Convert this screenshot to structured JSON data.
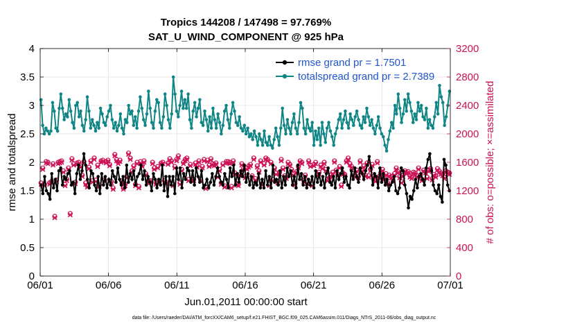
{
  "chart_data": {
    "type": "line",
    "title": "Tropics 144208 / 147498 = 97.769%",
    "subtitle": "SAT_U_WIND_COMPONENT @ 925 hPa",
    "xlabel": "Jun.01,2011 00:00:00 start",
    "ylabel": "rmse and totalspread",
    "ylabel_right": "# of obs: o=possible; ×=assimilated",
    "footnote": "data file: /Users/raeder/DAI/ATM_forcXX/CAM6_setup/f.e21.FHIST_BGC.f09_025.CAM6assim.011/Diags_NTrS_2011-06/obs_diag_output.nc",
    "x_tick_labels": [
      "06/01",
      "06/06",
      "06/11",
      "06/16",
      "06/21",
      "06/26",
      "07/01"
    ],
    "x_tick_days": [
      0,
      5,
      10,
      15,
      20,
      25,
      30
    ],
    "xlim": [
      0,
      30
    ],
    "ylim": [
      0,
      4
    ],
    "y_ticks": [
      0,
      0.5,
      1,
      1.5,
      2,
      2.5,
      3,
      3.5,
      4
    ],
    "y_tick_labels": [
      "0",
      "0.5",
      "1",
      "1.5",
      "2",
      "2.5",
      "3",
      "3.5",
      "4"
    ],
    "ylim_right": [
      0,
      3200
    ],
    "y_right_ticks": [
      0,
      400,
      800,
      1200,
      1600,
      2000,
      2400,
      2800,
      3200
    ],
    "y_right_tick_labels": [
      "0",
      "400",
      "800",
      "1200",
      "1600",
      "2000",
      "2400",
      "2800",
      "3200"
    ],
    "colors": {
      "rmse": "#000000",
      "totalspread": "#0f8585",
      "obs": "#cc1155"
    },
    "series": [
      {
        "name": "rmse grand pr = 1.7501",
        "axis": "left",
        "values": [
          1.6,
          1.45,
          1.75,
          1.5,
          1.45,
          1.35,
          1.8,
          1.55,
          1.7,
          1.5,
          1.85,
          1.9,
          1.6,
          1.75,
          1.7,
          1.8,
          1.85,
          1.6,
          1.65,
          1.45,
          1.8,
          1.95,
          1.7,
          1.85,
          2.15,
          1.95,
          1.7,
          1.55,
          1.85,
          1.8,
          1.6,
          1.5,
          1.75,
          1.45,
          1.8,
          1.6,
          1.75,
          1.55,
          1.7,
          1.6,
          1.85,
          1.75,
          1.65,
          1.9,
          1.7,
          1.6,
          1.75,
          1.55,
          1.95,
          1.65,
          1.8,
          1.7,
          1.85,
          1.6,
          1.75,
          1.8,
          1.95,
          1.7,
          1.85,
          1.6,
          1.75,
          1.65,
          1.5,
          1.8,
          1.7,
          1.55,
          1.7,
          1.6,
          1.95,
          1.5,
          1.75,
          1.4,
          1.75,
          1.6,
          1.75,
          1.45,
          1.9,
          1.7,
          1.9,
          1.55,
          1.8,
          1.7,
          1.9,
          1.85,
          1.65,
          1.85,
          1.6,
          1.9,
          1.75,
          1.65,
          1.85,
          1.55,
          1.6,
          1.7,
          1.55,
          1.65,
          1.8,
          1.6,
          1.75,
          1.9,
          1.75,
          1.65,
          1.6,
          1.8,
          1.7,
          1.55,
          1.9,
          1.75,
          1.95,
          1.6,
          1.8,
          1.65,
          1.85,
          1.75,
          1.95,
          1.65,
          1.8,
          1.6,
          1.75,
          1.55,
          1.65,
          1.6,
          1.8,
          1.55,
          1.7,
          1.55,
          1.85,
          1.6,
          1.75,
          1.55,
          1.95,
          1.65,
          1.7,
          1.6,
          1.85,
          1.55,
          1.75,
          1.6,
          1.9,
          1.75,
          1.85,
          1.6,
          1.75,
          1.55,
          1.95,
          1.7,
          1.8,
          1.6,
          1.75,
          1.55,
          1.7,
          1.6,
          1.75,
          1.55,
          1.85,
          1.65,
          1.8,
          1.6,
          1.75,
          1.55,
          1.8,
          1.9,
          1.65,
          1.6,
          1.75,
          1.55,
          1.85,
          1.7,
          1.8,
          1.9,
          1.65,
          1.75,
          1.6,
          1.55,
          1.85,
          1.7,
          1.9,
          1.75,
          1.65,
          1.9,
          1.8,
          1.7,
          1.85,
          1.95,
          2.1,
          1.9,
          1.6,
          1.8,
          1.75,
          1.55,
          1.9,
          1.65,
          1.8,
          1.6,
          1.7,
          1.5,
          1.6,
          1.65,
          1.75,
          1.5,
          1.45,
          1.55,
          1.9,
          1.85,
          1.6,
          1.45,
          1.2,
          1.4,
          1.35,
          1.5,
          1.7,
          1.55,
          1.75,
          1.8,
          1.7,
          1.6,
          1.9,
          2.05,
          2.15,
          1.85,
          1.6,
          1.5,
          1.45,
          1.6,
          1.4,
          1.3,
          2.05,
          1.95,
          1.6,
          1.5
        ]
      },
      {
        "name": "totalspread grand pr = 2.7389",
        "axis": "left",
        "values": [
          3.1,
          2.65,
          2.5,
          2.6,
          2.55,
          2.5,
          2.55,
          3.05,
          2.9,
          2.6,
          2.55,
          2.95,
          3.2,
          2.95,
          2.75,
          2.85,
          2.8,
          3.1,
          2.9,
          2.7,
          2.6,
          3.0,
          3.05,
          2.8,
          2.9,
          2.65,
          2.55,
          2.75,
          3.15,
          2.9,
          2.6,
          2.75,
          2.65,
          2.55,
          2.7,
          2.6,
          2.95,
          2.85,
          2.7,
          2.65,
          2.8,
          2.9,
          3.0,
          2.75,
          2.6,
          2.7,
          2.55,
          2.65,
          2.85,
          2.6,
          2.5,
          2.75,
          2.7,
          3.0,
          2.85,
          2.9,
          2.65,
          2.8,
          2.6,
          2.9,
          3.15,
          2.95,
          2.75,
          2.65,
          2.85,
          3.25,
          2.95,
          2.7,
          2.6,
          2.9,
          3.1,
          3.05,
          2.7,
          2.6,
          2.8,
          3.2,
          3.0,
          2.75,
          2.6,
          2.85,
          3.5,
          3.2,
          2.9,
          2.8,
          3.0,
          3.25,
          2.95,
          3.1,
          2.95,
          3.2,
          2.75,
          2.6,
          2.9,
          3.05,
          2.8,
          2.95,
          3.1,
          2.7,
          2.65,
          2.9,
          2.75,
          2.55,
          2.8,
          2.6,
          2.95,
          2.75,
          2.6,
          2.85,
          2.7,
          2.5,
          2.65,
          2.9,
          3.0,
          2.75,
          2.6,
          2.85,
          3.05,
          2.9,
          2.7,
          2.65,
          2.8,
          2.6,
          2.55,
          2.65,
          2.5,
          2.6,
          2.45,
          2.5,
          2.4,
          2.55,
          2.45,
          2.3,
          2.5,
          2.4,
          2.3,
          2.55,
          2.35,
          2.3,
          2.45,
          2.3,
          2.25,
          2.4,
          2.6,
          2.45,
          2.3,
          2.6,
          2.95,
          2.65,
          2.5,
          2.75,
          2.6,
          2.5,
          2.7,
          2.85,
          2.6,
          2.5,
          2.7,
          3.05,
          2.95,
          2.6,
          2.5,
          2.75,
          2.6,
          2.55,
          2.7,
          2.3,
          2.55,
          2.4,
          2.6,
          2.3,
          2.7,
          2.5,
          2.35,
          2.6,
          2.7,
          2.55,
          2.45,
          2.3,
          2.5,
          2.6,
          2.75,
          2.85,
          2.6,
          2.75,
          2.9,
          2.7,
          2.6,
          2.85,
          2.75,
          2.65,
          2.8,
          2.9,
          2.75,
          2.65,
          2.6,
          2.8,
          2.7,
          2.95,
          2.8,
          2.65,
          2.75,
          2.6,
          2.5,
          2.65,
          2.8,
          2.6,
          2.5,
          2.45,
          2.3,
          2.2,
          2.4,
          2.55,
          2.7,
          2.6,
          3.0,
          2.85,
          3.2,
          2.95,
          2.7,
          2.85,
          3.1,
          2.9,
          3.2,
          3.05,
          2.9,
          2.7,
          2.85,
          2.75,
          3.05,
          2.9,
          3.0,
          2.8,
          2.75,
          2.95,
          2.6,
          2.75,
          2.65,
          2.6,
          2.8,
          3.05,
          2.85,
          3.35,
          3.15,
          3.05,
          2.65,
          2.8,
          3.0,
          3.25
        ]
      },
      {
        "name": "obs possible",
        "axis": "right",
        "values": [
          1310,
          1520,
          1290,
          1610,
          1600,
          1310,
          1330,
          1580,
          840,
          1350,
          1600,
          1610,
          1620,
          1480,
          1290,
          1360,
          1520,
          880,
          1650,
          1580,
          1320,
          1590,
          1600,
          1550,
          1420,
          1610,
          1310,
          1270,
          1530,
          1620,
          1340,
          1660,
          1350,
          1560,
          1280,
          1620,
          1630,
          1350,
          1610,
          1630,
          1570,
          1330,
          1240,
          1710,
          1640,
          1600,
          1630,
          1340,
          1240,
          1290,
          1400,
          1730,
          1660,
          1480,
          1550,
          1290,
          1600,
          1260,
          1610,
          1560,
          1620,
          1440,
          1330,
          1340,
          1340,
          1600,
          1520,
          1310,
          1540,
          1330,
          1590,
          1600,
          1340,
          1320,
          1590,
          1650,
          1620,
          1290,
          1540,
          1640,
          1690,
          1310,
          1500,
          1600,
          1640,
          1660,
          1360,
          1570,
          1360,
          1360,
          1590,
          1550,
          1620,
          1360,
          1540,
          1640,
          1250,
          1630,
          1560,
          1650,
          1580,
          1570,
          1590,
          1410,
          1500,
          1310,
          1580,
          1270,
          1610,
          1610,
          1600,
          1260,
          1620,
          1450,
          1300,
          1290,
          1430,
          1580,
          1510,
          1400,
          1520,
          1550,
          1570,
          1410,
          1660,
          1370,
          1550,
          1480,
          1620,
          1300,
          1580,
          1660,
          1640,
          1290,
          1600,
          1360,
          1520,
          1450,
          1330,
          1460,
          1640,
          1520,
          1410,
          1390,
          1600,
          1570,
          1500,
          1440,
          1300,
          1470,
          1540,
          1620,
          1600,
          1350,
          1420,
          1320,
          1620,
          1560,
          1290,
          1570,
          1600,
          1430,
          1460,
          1560,
          1530,
          1600,
          1500,
          1360,
          1380,
          1420,
          1460,
          1620,
          1490,
          1430,
          1540,
          1280,
          1450,
          1430,
          1620,
          1660,
          1580,
          1540,
          1440,
          1410,
          1490,
          1400,
          1620,
          1490,
          1550,
          1420,
          1590,
          1410,
          1500,
          1570,
          1400,
          1350,
          1610,
          1400,
          1450,
          1500,
          1380,
          1440,
          1310,
          1420,
          1400,
          1360,
          1440,
          1520,
          1470,
          1400,
          1330,
          1420,
          1480,
          1460,
          1470,
          1410,
          1390,
          1460,
          1450,
          1410,
          1520,
          1420,
          1360,
          1490,
          1470,
          1390,
          1490,
          1510,
          1370,
          1430,
          1410,
          1510,
          1480,
          1450,
          1430,
          1390,
          1480,
          1460,
          1450
        ]
      },
      {
        "name": "obs assimilated",
        "axis": "right",
        "values": [
          1290,
          1500,
          1270,
          1590,
          1580,
          1290,
          1310,
          1560,
          820,
          1330,
          1580,
          1590,
          1600,
          1460,
          1270,
          1340,
          1500,
          860,
          1630,
          1560,
          1300,
          1570,
          1580,
          1530,
          1400,
          1590,
          1290,
          1250,
          1510,
          1600,
          1320,
          1640,
          1330,
          1540,
          1260,
          1600,
          1610,
          1330,
          1590,
          1610,
          1550,
          1310,
          1220,
          1690,
          1620,
          1580,
          1610,
          1320,
          1220,
          1270,
          1380,
          1710,
          1640,
          1460,
          1530,
          1270,
          1580,
          1240,
          1590,
          1540,
          1600,
          1420,
          1310,
          1320,
          1320,
          1580,
          1500,
          1290,
          1520,
          1310,
          1570,
          1580,
          1320,
          1300,
          1570,
          1630,
          1600,
          1270,
          1520,
          1620,
          1670,
          1290,
          1480,
          1580,
          1620,
          1640,
          1340,
          1550,
          1340,
          1340,
          1570,
          1530,
          1600,
          1340,
          1520,
          1620,
          1230,
          1610,
          1540,
          1630,
          1560,
          1550,
          1570,
          1390,
          1480,
          1290,
          1560,
          1250,
          1590,
          1590,
          1580,
          1240,
          1600,
          1430,
          1280,
          1270,
          1410,
          1560,
          1490,
          1380,
          1500,
          1530,
          1550,
          1390,
          1640,
          1350,
          1530,
          1460,
          1600,
          1280,
          1560,
          1640,
          1620,
          1270,
          1580,
          1340,
          1500,
          1430,
          1310,
          1440,
          1620,
          1500,
          1390,
          1370,
          1580,
          1550,
          1480,
          1420,
          1280,
          1450,
          1520,
          1600,
          1580,
          1330,
          1400,
          1300,
          1600,
          1540,
          1270,
          1550,
          1580,
          1410,
          1440,
          1540,
          1510,
          1580,
          1480,
          1340,
          1360,
          1400,
          1440,
          1600,
          1470,
          1410,
          1520,
          1260,
          1430,
          1410,
          1600,
          1640,
          1560,
          1520,
          1420,
          1390,
          1470,
          1380,
          1600,
          1470,
          1530,
          1400,
          1570,
          1390,
          1480,
          1550,
          1380,
          1330,
          1590,
          1380,
          1430,
          1480,
          1360,
          1420,
          1290,
          1400,
          1380,
          1340,
          1420,
          1500,
          1450,
          1380,
          1310,
          1400,
          1460,
          1440,
          1450,
          1390,
          1370,
          1440,
          1430,
          1390,
          1500,
          1400,
          1340,
          1470,
          1450,
          1370,
          1470,
          1490,
          1350,
          1410,
          1390,
          1490,
          1460,
          1430,
          1410,
          1370,
          1460,
          1440,
          1430
        ]
      }
    ]
  }
}
